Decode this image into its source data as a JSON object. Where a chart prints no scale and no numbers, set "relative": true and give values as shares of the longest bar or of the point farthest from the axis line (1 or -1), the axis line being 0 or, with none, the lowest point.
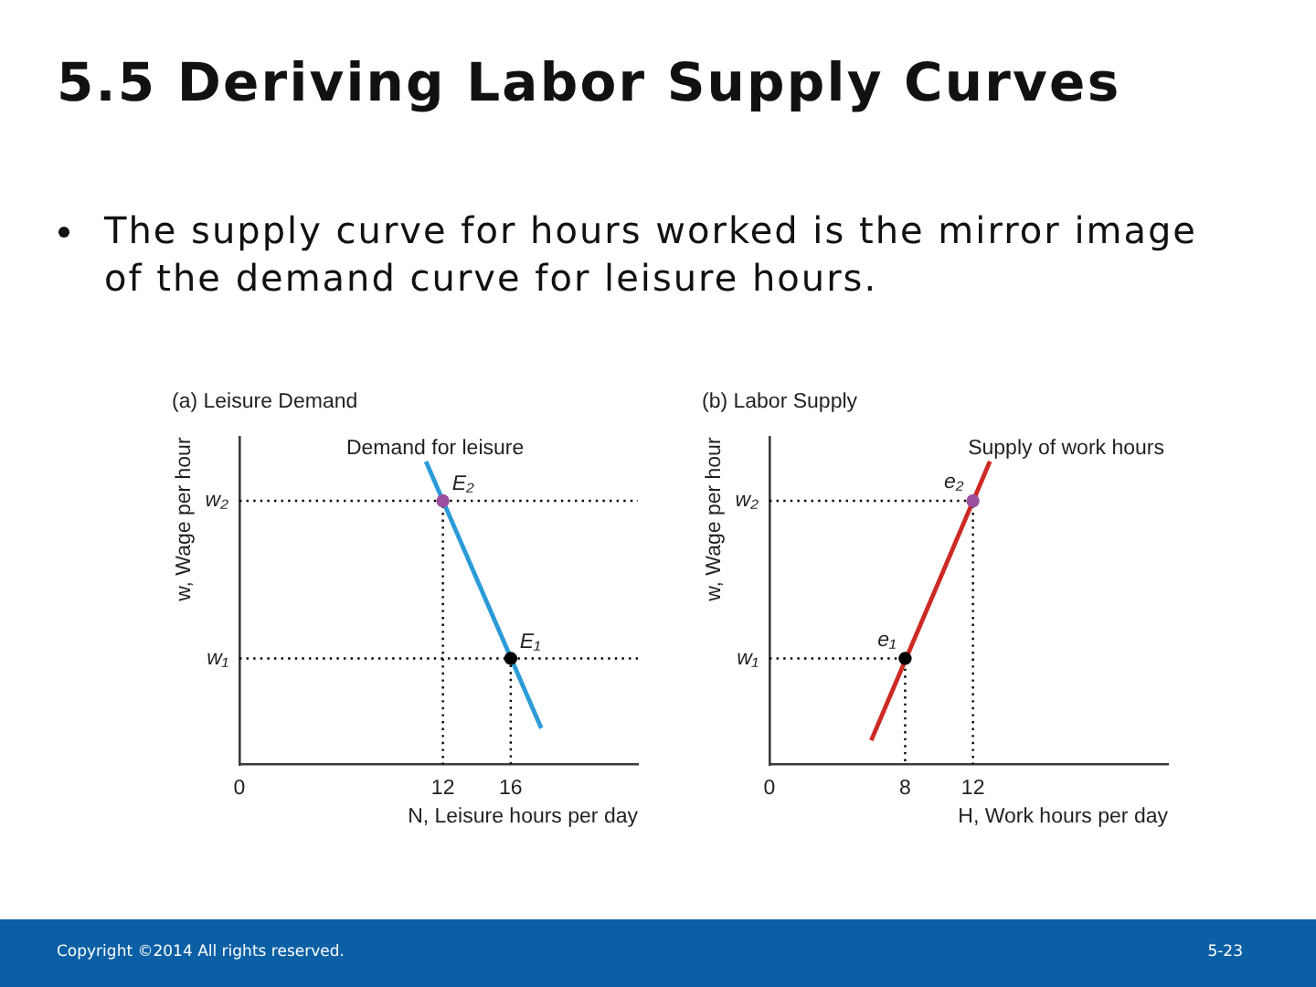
{
  "chart_data": [
    {
      "type": "other",
      "title": "5.5 Deriving Labor Supply Curves",
      "annotations": [
        "The supply curve for hours worked is the mirror image of the demand curve for leisure hours."
      ]
    },
    {
      "type": "line",
      "title": "(a) Leisure Demand",
      "xlabel": "N, Leisure hours per day",
      "ylabel": "w, Wage per hour",
      "relative": true,
      "xlim": [
        0,
        23.5
      ],
      "xticks": [
        0,
        12,
        16
      ],
      "grid": false,
      "legend": false,
      "series": [
        {
          "type": "line",
          "name": "Demand for leisure",
          "color": "#2b9bd8",
          "x": [
            11,
            17.8
          ],
          "values": [
            1,
            0.12
          ],
          "marker": "none",
          "line_style": "solid"
        },
        {
          "type": "line",
          "color": "#000000",
          "x": [
            0,
            12,
            12
          ],
          "values": [
            0.87,
            0.87,
            0
          ],
          "marker": "none",
          "line_style": "dotted"
        },
        {
          "type": "line",
          "color": "#000000",
          "x": [
            12,
            23.5
          ],
          "values": [
            0.87,
            0.87
          ],
          "marker": "none",
          "line_style": "dotted"
        },
        {
          "type": "line",
          "color": "#000000",
          "x": [
            0,
            16,
            16
          ],
          "values": [
            0.35,
            0.35,
            0
          ],
          "marker": "none",
          "line_style": "dotted"
        },
        {
          "type": "line",
          "color": "#000000",
          "x": [
            16,
            23.5
          ],
          "values": [
            0.35,
            0.35
          ],
          "marker": "none",
          "line_style": "dotted"
        },
        {
          "type": "scatter",
          "colors": [
            "#9b4f9e",
            "#000000"
          ],
          "x": [
            12,
            16
          ],
          "values": [
            0.87,
            0.35
          ],
          "marker": "circle"
        }
      ],
      "annotations": [
        {
          "text": "w₂",
          "x": 0,
          "y": 0.87
        },
        {
          "text": "w₁",
          "x": 0,
          "y": 0.35
        },
        {
          "text": "E₂",
          "x": 12,
          "y": 0.87
        },
        {
          "text": "E₁",
          "x": 16,
          "y": 0.35
        }
      ]
    },
    {
      "type": "line",
      "title": "(b) Labor Supply",
      "xlabel": "H, Work hours per day",
      "ylabel": "w, Wage per hour",
      "relative": true,
      "xlim": [
        0,
        23.5
      ],
      "xticks": [
        0,
        8,
        12
      ],
      "grid": false,
      "legend": false,
      "series": [
        {
          "type": "line",
          "name": "Supply of work hours",
          "color": "#cc2a23",
          "x": [
            6,
            13
          ],
          "values": [
            0.08,
            1
          ],
          "marker": "none",
          "line_style": "solid"
        },
        {
          "type": "line",
          "color": "#000000",
          "x": [
            0,
            12,
            12
          ],
          "values": [
            0.87,
            0.87,
            0
          ],
          "marker": "none",
          "line_style": "dotted"
        },
        {
          "type": "line",
          "color": "#000000",
          "x": [
            0,
            8,
            8
          ],
          "values": [
            0.35,
            0.35,
            0
          ],
          "marker": "none",
          "line_style": "dotted"
        },
        {
          "type": "scatter",
          "colors": [
            "#000000",
            "#9b4f9e"
          ],
          "x": [
            8,
            12
          ],
          "values": [
            0.35,
            0.87
          ],
          "marker": "circle"
        }
      ],
      "annotations": [
        {
          "text": "w₂",
          "x": 0,
          "y": 0.87
        },
        {
          "text": "w₁",
          "x": 0,
          "y": 0.35
        },
        {
          "text": "e₁",
          "x": 8,
          "y": 0.35
        },
        {
          "text": "e₂",
          "x": 12,
          "y": 0.87
        }
      ]
    },
    {
      "type": "other",
      "annotations": [
        "Copyright ©2014 All rights reserved.",
        "5-23"
      ]
    }
  ]
}
